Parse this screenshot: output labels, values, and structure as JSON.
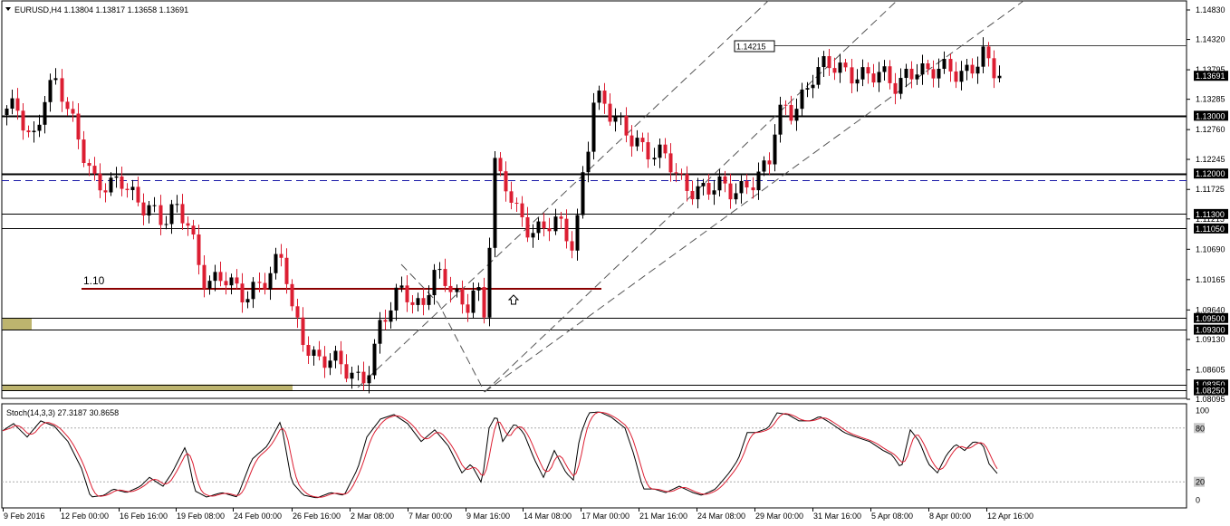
{
  "header": {
    "symbol_line": "EURUSD,H4  1.13804 1.13817 1.13658 1.13691",
    "indicator_line": "Stoch(14,3,3) 27.3187 30.8658"
  },
  "chart_data": {
    "type": "candlestick",
    "symbol": "EURUSD",
    "timeframe": "H4",
    "ohlc_current": {
      "open": 1.13804,
      "high": 1.13817,
      "low": 1.13658,
      "close": 1.13691
    },
    "price_axis": {
      "range": [
        1.08095,
        1.1483
      ],
      "ticks": [
        "1.14830",
        "1.14320",
        "1.13795",
        "1.13285",
        "1.12760",
        "1.12245",
        "1.11725",
        "1.11215",
        "1.10690",
        "1.10165",
        "1.09640",
        "1.09130",
        "1.08605",
        "1.08095"
      ]
    },
    "time_axis": {
      "labels": [
        "9 Feb 2016",
        "12 Feb 00:00",
        "16 Feb 16:00",
        "19 Feb 08:00",
        "24 Feb 00:00",
        "26 Feb 16:00",
        "2 Mar 08:00",
        "7 Mar 00:00",
        "9 Mar 16:00",
        "14 Mar 08:00",
        "17 Mar 00:00",
        "21 Mar 16:00",
        "24 Mar 08:00",
        "29 Mar 00:00",
        "31 Mar 16:00",
        "5 Apr 08:00",
        "8 Apr 00:00",
        "12 Apr 16:00"
      ]
    },
    "price_path": [
      [
        0,
        1.121
      ],
      [
        5,
        1.13
      ],
      [
        20,
        1.131
      ],
      [
        35,
        1.126
      ],
      [
        50,
        1.134
      ],
      [
        62,
        1.135
      ],
      [
        75,
        1.13
      ],
      [
        90,
        1.125
      ],
      [
        105,
        1.119
      ],
      [
        120,
        1.117
      ],
      [
        135,
        1.118
      ],
      [
        150,
        1.116
      ],
      [
        165,
        1.115
      ],
      [
        178,
        1.111
      ],
      [
        192,
        1.113
      ],
      [
        208,
        1.112
      ],
      [
        222,
        1.103
      ],
      [
        235,
        1.101
      ],
      [
        250,
        1.101
      ],
      [
        265,
        1.099
      ],
      [
        280,
        1.101
      ],
      [
        295,
        1.102
      ],
      [
        312,
        1.105
      ],
      [
        322,
        1.096
      ],
      [
        335,
        1.092
      ],
      [
        350,
        1.088
      ],
      [
        365,
        1.087
      ],
      [
        380,
        1.086
      ],
      [
        398,
        1.085
      ],
      [
        410,
        1.088
      ],
      [
        420,
        1.094
      ],
      [
        432,
        1.096
      ],
      [
        445,
        1.101
      ],
      [
        455,
        1.098
      ],
      [
        465,
        1.098
      ],
      [
        478,
        1.102
      ],
      [
        490,
        1.101
      ],
      [
        500,
        1.099
      ],
      [
        512,
        1.097
      ],
      [
        522,
        1.101
      ],
      [
        530,
        1.099
      ],
      [
        538,
        1.092
      ],
      [
        541,
        1.118
      ],
      [
        546,
        1.121
      ],
      [
        552,
        1.118
      ],
      [
        560,
        1.117
      ],
      [
        570,
        1.114
      ],
      [
        585,
        1.111
      ],
      [
        598,
        1.11
      ],
      [
        612,
        1.111
      ],
      [
        625,
        1.109
      ],
      [
        634,
        1.108
      ],
      [
        640,
        1.118
      ],
      [
        648,
        1.125
      ],
      [
        655,
        1.133
      ],
      [
        663,
        1.132
      ],
      [
        675,
        1.129
      ],
      [
        690,
        1.128
      ],
      [
        705,
        1.126
      ],
      [
        720,
        1.123
      ],
      [
        735,
        1.122
      ],
      [
        750,
        1.119
      ],
      [
        765,
        1.118
      ],
      [
        780,
        1.117
      ],
      [
        795,
        1.117
      ],
      [
        810,
        1.117
      ],
      [
        825,
        1.119
      ],
      [
        840,
        1.12
      ],
      [
        848,
        1.121
      ],
      [
        855,
        1.127
      ],
      [
        863,
        1.131
      ],
      [
        872,
        1.131
      ],
      [
        885,
        1.134
      ],
      [
        897,
        1.137
      ],
      [
        912,
        1.138
      ],
      [
        930,
        1.138
      ],
      [
        945,
        1.138
      ],
      [
        960,
        1.137
      ],
      [
        975,
        1.136
      ],
      [
        990,
        1.135
      ],
      [
        1000,
        1.138
      ],
      [
        1010,
        1.139
      ],
      [
        1022,
        1.137
      ],
      [
        1035,
        1.137
      ],
      [
        1048,
        1.138
      ],
      [
        1060,
        1.138
      ],
      [
        1072,
        1.139
      ],
      [
        1085,
        1.14
      ],
      [
        1095,
        1.137
      ],
      [
        1103,
        1.1369
      ]
    ],
    "candles": {
      "x_start": 7,
      "x_end": 1103,
      "count": 182
    },
    "horizontal_levels": [
      {
        "price": 1.13,
        "label": "1.13000",
        "style": "thick"
      },
      {
        "price": 1.12,
        "label": "1.12000",
        "style": "thick"
      },
      {
        "price": 1.113,
        "label": "1.11300",
        "style": "thin"
      },
      {
        "price": 1.1105,
        "label": "1.11050",
        "style": "thin"
      },
      {
        "price": 1.095,
        "label": "1.09500",
        "style": "thin"
      },
      {
        "price": 1.093,
        "label": "1.09300",
        "style": "thin"
      },
      {
        "price": 1.0835,
        "label": "1.08350",
        "style": "thin"
      },
      {
        "price": 1.0825,
        "label": "1.08250",
        "style": "thin"
      }
    ],
    "level_1_10": {
      "label": "1.10",
      "price": 1.1
    },
    "marker_1_14215": {
      "label": "1.14215",
      "price": 1.14215
    },
    "bid_dashed_line": {
      "price": 1.1189,
      "color": "#1a1aa8"
    },
    "current_price_tag": {
      "label": "1.13691",
      "price": 1.13691
    },
    "stochastic": {
      "name": "Stoch(14,3,3)",
      "main": 27.3187,
      "signal": 30.8658,
      "levels": [
        80,
        20
      ],
      "axis_labels": [
        "100",
        "80",
        "20",
        "0"
      ],
      "path": [
        [
          0,
          75
        ],
        [
          15,
          85
        ],
        [
          30,
          70
        ],
        [
          45,
          88
        ],
        [
          60,
          82
        ],
        [
          75,
          65
        ],
        [
          90,
          35
        ],
        [
          100,
          3
        ],
        [
          115,
          5
        ],
        [
          125,
          12
        ],
        [
          140,
          8
        ],
        [
          155,
          15
        ],
        [
          165,
          25
        ],
        [
          180,
          15
        ],
        [
          190,
          30
        ],
        [
          205,
          60
        ],
        [
          215,
          10
        ],
        [
          228,
          3
        ],
        [
          245,
          8
        ],
        [
          262,
          3
        ],
        [
          278,
          45
        ],
        [
          295,
          60
        ],
        [
          310,
          88
        ],
        [
          322,
          20
        ],
        [
          335,
          5
        ],
        [
          350,
          2
        ],
        [
          365,
          8
        ],
        [
          380,
          5
        ],
        [
          395,
          35
        ],
        [
          405,
          70
        ],
        [
          420,
          90
        ],
        [
          435,
          95
        ],
        [
          450,
          85
        ],
        [
          465,
          65
        ],
        [
          480,
          78
        ],
        [
          495,
          60
        ],
        [
          510,
          30
        ],
        [
          520,
          40
        ],
        [
          532,
          18
        ],
        [
          540,
          80
        ],
        [
          548,
          95
        ],
        [
          555,
          65
        ],
        [
          568,
          85
        ],
        [
          578,
          75
        ],
        [
          590,
          45
        ],
        [
          600,
          25
        ],
        [
          612,
          55
        ],
        [
          625,
          30
        ],
        [
          633,
          22
        ],
        [
          640,
          70
        ],
        [
          650,
          97
        ],
        [
          662,
          98
        ],
        [
          675,
          92
        ],
        [
          690,
          80
        ],
        [
          700,
          50
        ],
        [
          710,
          12
        ],
        [
          722,
          12
        ],
        [
          735,
          8
        ],
        [
          750,
          15
        ],
        [
          765,
          8
        ],
        [
          775,
          5
        ],
        [
          790,
          12
        ],
        [
          805,
          30
        ],
        [
          815,
          45
        ],
        [
          825,
          75
        ],
        [
          835,
          75
        ],
        [
          848,
          80
        ],
        [
          858,
          97
        ],
        [
          870,
          95
        ],
        [
          882,
          88
        ],
        [
          895,
          88
        ],
        [
          905,
          93
        ],
        [
          918,
          85
        ],
        [
          932,
          75
        ],
        [
          945,
          70
        ],
        [
          960,
          65
        ],
        [
          975,
          55
        ],
        [
          985,
          50
        ],
        [
          995,
          35
        ],
        [
          1005,
          78
        ],
        [
          1015,
          65
        ],
        [
          1025,
          40
        ],
        [
          1035,
          30
        ],
        [
          1045,
          50
        ],
        [
          1055,
          62
        ],
        [
          1065,
          55
        ],
        [
          1075,
          65
        ],
        [
          1085,
          62
        ],
        [
          1092,
          40
        ],
        [
          1103,
          27
        ]
      ]
    },
    "colors": {
      "bull": "#000000",
      "bear": "#dc1e32",
      "signal": "#dc1e32",
      "zone": "#bdb46e",
      "trend": "#555555"
    }
  }
}
